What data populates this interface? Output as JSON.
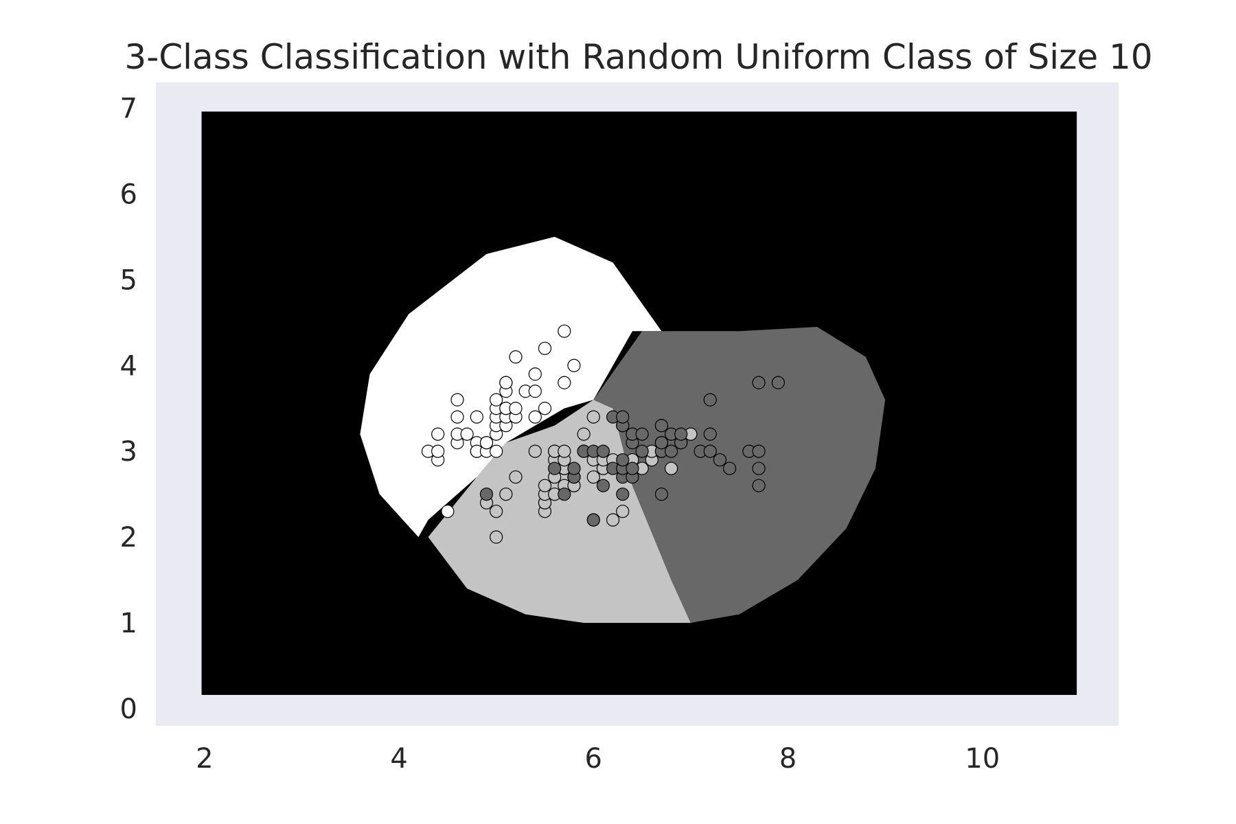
{
  "chart_data": {
    "type": "scatter",
    "title": "3-Class Classification with Random Uniform Class of Size 10",
    "xlabel": "",
    "ylabel": "",
    "xlim": [
      1.5,
      11.4
    ],
    "ylim": [
      -0.2,
      7.3
    ],
    "xticks": [
      2,
      4,
      6,
      8,
      10
    ],
    "yticks": [
      0,
      1,
      2,
      3,
      4,
      5,
      6,
      7
    ],
    "grid": false,
    "legend": "none",
    "colors": {
      "plot_background": "#eaeaf2",
      "decision_background": "#000000",
      "class_white": "#ffffff",
      "class_light": "#c4c4c4",
      "class_dark": "#686868",
      "point_edge": "#000000",
      "text": "#262626"
    },
    "meshgrid_extent": {
      "x": [
        1.97,
        10.97
      ],
      "y": [
        0.16,
        6.96
      ]
    },
    "decision_regions": [
      {
        "class": "white",
        "boundary": [
          [
            4.2,
            2.0
          ],
          [
            3.8,
            2.5
          ],
          [
            3.6,
            3.2
          ],
          [
            3.7,
            3.9
          ],
          [
            4.1,
            4.6
          ],
          [
            4.9,
            5.3
          ],
          [
            5.6,
            5.5
          ],
          [
            6.2,
            5.2
          ],
          [
            6.7,
            4.4
          ],
          [
            6.4,
            4.4
          ],
          [
            6.0,
            3.6
          ],
          [
            5.7,
            3.5
          ],
          [
            5.1,
            3.1
          ],
          [
            4.8,
            2.7
          ],
          [
            4.3,
            2.2
          ]
        ]
      },
      {
        "class": "light",
        "boundary": [
          [
            4.3,
            2.0
          ],
          [
            4.8,
            2.7
          ],
          [
            5.1,
            3.1
          ],
          [
            5.6,
            3.3
          ],
          [
            6.0,
            3.6
          ],
          [
            6.2,
            3.5
          ],
          [
            6.4,
            2.6
          ],
          [
            6.8,
            1.5
          ],
          [
            7.0,
            1.0
          ],
          [
            6.5,
            1.0
          ],
          [
            5.9,
            1.0
          ],
          [
            5.3,
            1.1
          ],
          [
            4.7,
            1.4
          ],
          [
            4.3,
            2.0
          ]
        ]
      },
      {
        "class": "dark",
        "boundary": [
          [
            6.0,
            3.6
          ],
          [
            6.5,
            4.4
          ],
          [
            7.5,
            4.4
          ],
          [
            8.3,
            4.45
          ],
          [
            8.8,
            4.1
          ],
          [
            9.0,
            3.6
          ],
          [
            8.9,
            2.8
          ],
          [
            8.6,
            2.1
          ],
          [
            8.1,
            1.5
          ],
          [
            7.5,
            1.1
          ],
          [
            7.0,
            1.0
          ],
          [
            6.8,
            1.5
          ],
          [
            6.4,
            2.6
          ],
          [
            6.2,
            3.5
          ]
        ]
      }
    ],
    "series": [
      {
        "class": "white",
        "fill": "#ffffff",
        "x": [
          4.3,
          4.4,
          4.4,
          4.4,
          4.5,
          4.6,
          4.6,
          4.6,
          4.6,
          4.7,
          4.8,
          4.8,
          4.8,
          4.8,
          4.9,
          4.9,
          4.9,
          5.0,
          5.0,
          5.0,
          5.0,
          5.0,
          5.0,
          5.1,
          5.1,
          5.1,
          5.1,
          5.1,
          5.1,
          5.1,
          5.2,
          5.2,
          5.2,
          5.3,
          5.4,
          5.4,
          5.4,
          5.5,
          5.5,
          5.7,
          5.7,
          5.8,
          5.8
        ],
        "y": [
          3.0,
          2.9,
          3.0,
          3.2,
          2.3,
          3.1,
          3.2,
          3.4,
          3.6,
          3.2,
          3.0,
          3.1,
          3.0,
          3.4,
          3.0,
          3.1,
          3.1,
          3.0,
          3.2,
          3.3,
          3.4,
          3.5,
          3.6,
          3.3,
          3.4,
          3.5,
          3.5,
          3.7,
          3.8,
          3.8,
          3.4,
          3.5,
          4.1,
          3.7,
          3.4,
          3.7,
          3.9,
          3.5,
          4.2,
          3.8,
          4.4,
          2.6,
          4.0
        ]
      },
      {
        "class": "light",
        "fill": "#c4c4c4",
        "x": [
          4.9,
          5.0,
          5.0,
          5.1,
          5.2,
          5.4,
          5.5,
          5.5,
          5.5,
          5.5,
          5.5,
          5.6,
          5.6,
          5.6,
          5.6,
          5.6,
          5.7,
          5.7,
          5.7,
          5.7,
          5.7,
          5.8,
          5.8,
          5.9,
          5.9,
          6.0,
          6.0,
          6.0,
          6.0,
          6.1,
          6.1,
          6.1,
          6.2,
          6.2,
          6.3,
          6.3,
          6.4,
          6.4,
          6.5,
          6.6,
          6.6,
          6.7,
          6.7,
          6.7,
          6.8,
          6.9,
          7.0
        ],
        "y": [
          2.4,
          2.0,
          2.3,
          2.5,
          2.7,
          3.0,
          2.3,
          2.4,
          2.4,
          2.5,
          2.6,
          2.5,
          2.7,
          2.9,
          3.0,
          3.0,
          2.6,
          2.8,
          2.8,
          2.9,
          3.0,
          2.6,
          2.7,
          3.0,
          3.2,
          2.2,
          2.7,
          2.9,
          3.4,
          2.8,
          2.8,
          2.9,
          2.2,
          2.9,
          2.3,
          3.3,
          2.9,
          3.2,
          2.8,
          2.9,
          3.0,
          3.0,
          3.1,
          3.1,
          2.8,
          3.1,
          3.2
        ]
      },
      {
        "class": "dark",
        "fill": "#686868",
        "x": [
          4.9,
          5.6,
          5.7,
          5.8,
          5.8,
          5.8,
          5.9,
          6.0,
          6.0,
          6.1,
          6.1,
          6.2,
          6.2,
          6.3,
          6.3,
          6.3,
          6.3,
          6.3,
          6.3,
          6.4,
          6.4,
          6.4,
          6.4,
          6.5,
          6.5,
          6.7,
          6.7,
          6.7,
          6.7,
          6.7,
          6.8,
          6.8,
          6.9,
          6.9,
          7.1,
          7.2,
          7.2,
          7.2,
          7.3,
          7.4,
          7.6,
          7.7,
          7.7,
          7.7,
          7.7,
          7.9
        ],
        "y": [
          2.5,
          2.8,
          2.5,
          2.7,
          2.7,
          2.8,
          3.0,
          2.2,
          3.0,
          2.6,
          3.0,
          2.8,
          3.4,
          2.5,
          2.7,
          2.8,
          2.9,
          3.3,
          3.4,
          2.7,
          2.8,
          3.1,
          3.2,
          3.0,
          3.2,
          2.5,
          3.0,
          3.1,
          3.3,
          3.3,
          3.0,
          3.2,
          3.1,
          3.2,
          3.0,
          3.0,
          3.2,
          3.6,
          2.9,
          2.8,
          3.0,
          2.6,
          2.8,
          3.0,
          3.8,
          3.8
        ]
      }
    ]
  }
}
